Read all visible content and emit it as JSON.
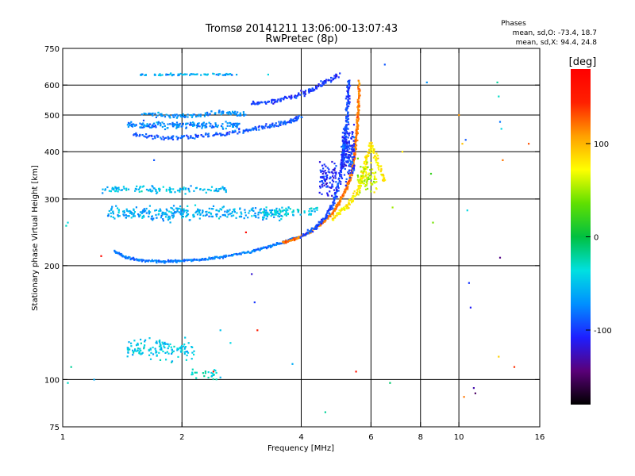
{
  "chart_data": {
    "type": "scatter",
    "title_line1": "Tromsø 20141211 13:06:00-13:07:43",
    "title_line2": "RwPretec (8p)",
    "phases": {
      "heading": "Phases",
      "line_o": "mean, sd,O: -73.4, 18.7",
      "line_x": "mean, sd,X:  94.4, 24.8"
    },
    "xlabel": "Frequency [MHz]",
    "ylabel": "Stationary phase Virtual Height [km]",
    "x_scale": "log",
    "y_scale": "log",
    "xlim": [
      1,
      16
    ],
    "ylim": [
      75,
      750
    ],
    "x_ticks": [
      {
        "value": 1,
        "label": "1"
      },
      {
        "value": 2,
        "label": "2"
      },
      {
        "value": 4,
        "label": "4"
      },
      {
        "value": 6,
        "label": "6"
      },
      {
        "value": 8,
        "label": "8"
      },
      {
        "value": 10,
        "label": "10"
      },
      {
        "value": 16,
        "label": "16"
      }
    ],
    "y_ticks": [
      {
        "value": 75,
        "label": "75"
      },
      {
        "value": 100,
        "label": "100"
      },
      {
        "value": 200,
        "label": "200"
      },
      {
        "value": 300,
        "label": "300"
      },
      {
        "value": 400,
        "label": "400"
      },
      {
        "value": 500,
        "label": "500"
      },
      {
        "value": 600,
        "label": "600"
      },
      {
        "value": 750,
        "label": "750"
      }
    ],
    "x_gridlines": [
      2,
      4,
      6,
      8,
      10
    ],
    "y_gridlines": [
      100,
      200,
      300,
      400,
      500,
      600
    ],
    "grid": true,
    "colorbar": {
      "label": "[deg]",
      "range": [
        -180,
        180
      ],
      "ticks": [
        {
          "value": 100,
          "label": "100"
        },
        {
          "value": 0,
          "label": "0"
        },
        {
          "value": -100,
          "label": "-100"
        }
      ],
      "colors": [
        "#000000",
        "#5a0078",
        "#1e1eff",
        "#0090ff",
        "#00e0e0",
        "#00c040",
        "#60e000",
        "#ffff00",
        "#ffa000",
        "#ff2000",
        "#ff0000"
      ]
    },
    "traces": [
      {
        "name": "O-mode lower F trace",
        "phase": -80,
        "spread": 0.01,
        "points": [
          [
            1.35,
            218
          ],
          [
            1.45,
            210
          ],
          [
            1.6,
            206
          ],
          [
            1.8,
            205
          ],
          [
            2.0,
            206
          ],
          [
            2.3,
            208
          ],
          [
            2.6,
            212
          ],
          [
            3.0,
            218
          ],
          [
            3.3,
            224
          ],
          [
            3.6,
            230
          ],
          [
            3.9,
            238
          ]
        ]
      },
      {
        "name": "orange trace",
        "phase": 120,
        "spread": 0.01,
        "points": [
          [
            3.6,
            230
          ],
          [
            3.9,
            236
          ],
          [
            4.2,
            245
          ],
          [
            4.5,
            258
          ],
          [
            4.8,
            275
          ],
          [
            5.0,
            295
          ],
          [
            5.2,
            320
          ],
          [
            5.35,
            350
          ],
          [
            5.45,
            390
          ],
          [
            5.5,
            430
          ],
          [
            5.55,
            480
          ],
          [
            5.58,
            540
          ],
          [
            5.6,
            620
          ]
        ]
      },
      {
        "name": "O-mode cusp trace",
        "phase": -95,
        "spread": 0.015,
        "points": [
          [
            4.0,
            238
          ],
          [
            4.3,
            250
          ],
          [
            4.6,
            268
          ],
          [
            4.8,
            290
          ],
          [
            4.95,
            320
          ],
          [
            5.05,
            360
          ],
          [
            5.12,
            400
          ],
          [
            5.18,
            450
          ],
          [
            5.22,
            500
          ],
          [
            5.25,
            560
          ],
          [
            5.28,
            620
          ]
        ]
      },
      {
        "name": "yellow X trace",
        "phase": 80,
        "spread": 0.02,
        "points": [
          [
            4.8,
            265
          ],
          [
            5.2,
            285
          ],
          [
            5.5,
            310
          ],
          [
            5.7,
            340
          ],
          [
            5.85,
            380
          ],
          [
            6.0,
            420
          ],
          [
            6.2,
            380
          ],
          [
            6.5,
            330
          ]
        ]
      },
      {
        "name": "upper echo 450",
        "phase": -90,
        "spread": 0.02,
        "points": [
          [
            1.5,
            445
          ],
          [
            1.8,
            435
          ],
          [
            2.1,
            438
          ],
          [
            2.5,
            445
          ],
          [
            2.9,
            455
          ],
          [
            3.3,
            468
          ],
          [
            3.7,
            480
          ],
          [
            4.0,
            495
          ]
        ]
      },
      {
        "name": "upper echo 540",
        "phase": -100,
        "spread": 0.02,
        "points": [
          [
            3.0,
            535
          ],
          [
            3.4,
            545
          ],
          [
            3.8,
            560
          ],
          [
            4.2,
            580
          ],
          [
            4.6,
            610
          ],
          [
            5.0,
            640
          ]
        ]
      },
      {
        "name": "upper echo 490",
        "phase": -70,
        "spread": 0.02,
        "points": [
          [
            1.6,
            505
          ],
          [
            1.9,
            495
          ],
          [
            2.2,
            500
          ],
          [
            2.6,
            510
          ],
          [
            2.9,
            500
          ]
        ]
      }
    ],
    "bands": [
      {
        "name": "band 640",
        "phase": -60,
        "x": [
          1.55,
          2.8
        ],
        "y": 640,
        "count": 70,
        "spread": 0.008
      },
      {
        "name": "band 470",
        "phase": -75,
        "x": [
          1.45,
          2.8
        ],
        "y": 470,
        "count": 180,
        "spread": 0.03
      },
      {
        "name": "band 320",
        "phase": -50,
        "x": [
          1.25,
          2.6
        ],
        "y": 318,
        "count": 120,
        "spread": 0.03
      },
      {
        "name": "band 275",
        "phase": -60,
        "x": [
          1.3,
          3.6
        ],
        "y": 275,
        "count": 320,
        "spread": 0.06
      },
      {
        "name": "band 290 mid",
        "phase": -40,
        "x": [
          3.2,
          4.4
        ],
        "y": 278,
        "count": 70,
        "spread": 0.04
      },
      {
        "name": "low cluster",
        "phase": -45,
        "x": [
          1.45,
          2.15
        ],
        "y": 120,
        "count": 130,
        "spread": 0.09
      },
      {
        "name": "low cluster right",
        "phase": -30,
        "x": [
          2.1,
          2.5
        ],
        "y": 103,
        "count": 25,
        "spread": 0.05
      },
      {
        "name": "vertical 5.2",
        "phase": -100,
        "x": [
          5.05,
          5.45
        ],
        "y": 400,
        "count": 180,
        "spread": 0.22
      },
      {
        "name": "vertical 4.6",
        "phase": -105,
        "x": [
          4.45,
          4.95
        ],
        "y": 340,
        "count": 90,
        "spread": 0.14
      },
      {
        "name": "vertical 5.7",
        "phase": 60,
        "x": [
          5.55,
          6.2
        ],
        "y": 340,
        "count": 80,
        "spread": 0.14
      }
    ],
    "scatter": [
      [
        6.5,
        680,
        -90
      ],
      [
        6.8,
        285,
        50
      ],
      [
        7.2,
        400,
        80
      ],
      [
        8.3,
        610,
        -70
      ],
      [
        8.5,
        350,
        20
      ],
      [
        8.6,
        260,
        40
      ],
      [
        10.0,
        500,
        110
      ],
      [
        10.2,
        420,
        95
      ],
      [
        10.4,
        430,
        -90
      ],
      [
        10.5,
        280,
        -40
      ],
      [
        10.6,
        180,
        -100
      ],
      [
        10.7,
        155,
        -110
      ],
      [
        10.9,
        95,
        -130
      ],
      [
        11.0,
        92,
        -150
      ],
      [
        10.3,
        90,
        120
      ],
      [
        12.5,
        610,
        -20
      ],
      [
        12.6,
        560,
        -30
      ],
      [
        12.7,
        480,
        -80
      ],
      [
        12.8,
        460,
        -40
      ],
      [
        12.9,
        380,
        120
      ],
      [
        12.7,
        210,
        -140
      ],
      [
        12.6,
        115,
        90
      ],
      [
        13.8,
        108,
        140
      ],
      [
        15.0,
        420,
        130
      ],
      [
        1.03,
        260,
        -40
      ],
      [
        1.02,
        255,
        -30
      ],
      [
        1.05,
        108,
        -20
      ],
      [
        1.03,
        98,
        -30
      ],
      [
        1.2,
        100,
        -60
      ],
      [
        3.0,
        190,
        -120
      ],
      [
        3.05,
        160,
        -100
      ],
      [
        3.1,
        135,
        150
      ],
      [
        2.65,
        125,
        -40
      ],
      [
        2.5,
        135,
        -50
      ],
      [
        3.3,
        640,
        -40
      ],
      [
        3.8,
        110,
        -60
      ],
      [
        4.6,
        82,
        -20
      ],
      [
        5.5,
        105,
        160
      ],
      [
        6.7,
        98,
        -10
      ],
      [
        2.4,
        105,
        150
      ],
      [
        2.9,
        245,
        170
      ],
      [
        1.25,
        212,
        170
      ],
      [
        1.65,
        440,
        -90
      ],
      [
        1.7,
        380,
        -90
      ]
    ]
  }
}
